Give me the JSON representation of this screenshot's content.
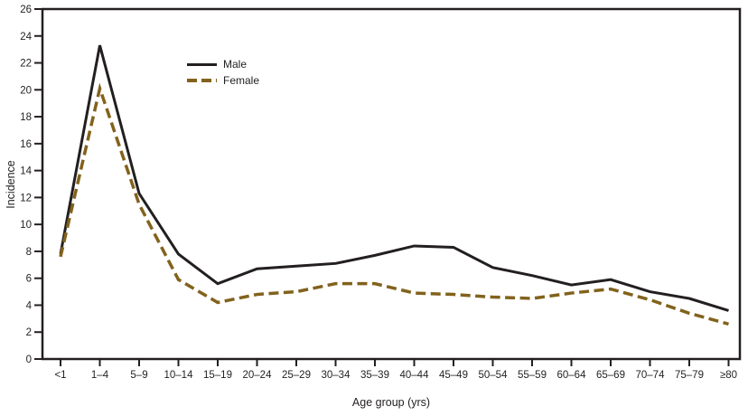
{
  "figure": {
    "background_color": "#ffffff",
    "axis_color": "#231f20",
    "text_color": "#231f20"
  },
  "chart_data": {
    "type": "line",
    "title": "",
    "xlabel": "Age group (yrs)",
    "ylabel": "Incidence",
    "ylim": [
      0,
      26
    ],
    "ytick_step": 2,
    "grid": false,
    "legend_position": "inside-upper-left",
    "categories": [
      "<1",
      "1–4",
      "5–9",
      "10–14",
      "15–19",
      "20–24",
      "25–29",
      "30–34",
      "35–39",
      "40–44",
      "45–49",
      "50–54",
      "55–59",
      "60–64",
      "65–69",
      "70–74",
      "75–79",
      "≥80"
    ],
    "series": [
      {
        "name": "Male",
        "color": "#231f20",
        "line_style": "solid",
        "values": [
          7.8,
          23.3,
          12.3,
          7.8,
          5.6,
          6.7,
          6.9,
          7.1,
          7.7,
          8.4,
          8.3,
          6.8,
          6.2,
          5.5,
          5.9,
          5.0,
          4.5,
          3.6
        ]
      },
      {
        "name": "Female",
        "color": "#82621c",
        "line_style": "dashed",
        "values": [
          7.6,
          20.1,
          11.5,
          5.9,
          4.2,
          4.8,
          5.0,
          5.6,
          5.6,
          4.9,
          4.8,
          4.6,
          4.5,
          4.9,
          5.2,
          4.4,
          3.4,
          2.6
        ]
      }
    ]
  }
}
